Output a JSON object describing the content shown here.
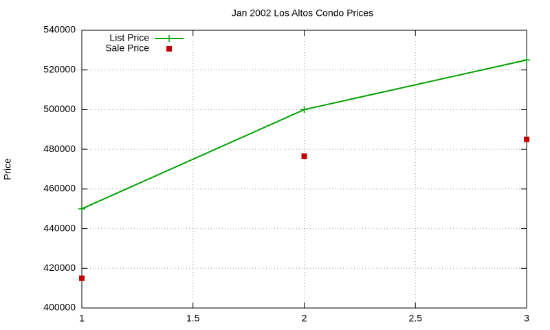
{
  "chart_data": {
    "type": "line",
    "title": "Jan 2002 Los Altos Condo Prices",
    "y_label": "Price",
    "x": [
      1,
      2,
      3
    ],
    "series": [
      {
        "name": "List Price",
        "color": "#00a000",
        "values": [
          450000,
          500000,
          525000
        ],
        "line": true,
        "marker": "plus"
      },
      {
        "name": "Sale Price",
        "color": "#c00000",
        "values": [
          415000,
          476500,
          485000
        ],
        "line": false,
        "marker": "square"
      }
    ],
    "xlim": [
      1,
      3
    ],
    "xticks": [
      1,
      1.5,
      2,
      2.5,
      3
    ],
    "ylim": [
      400000,
      540000
    ],
    "yticks": [
      400000,
      420000,
      440000,
      460000,
      480000,
      500000,
      520000,
      540000
    ],
    "grid": true,
    "legend": "top-left"
  }
}
